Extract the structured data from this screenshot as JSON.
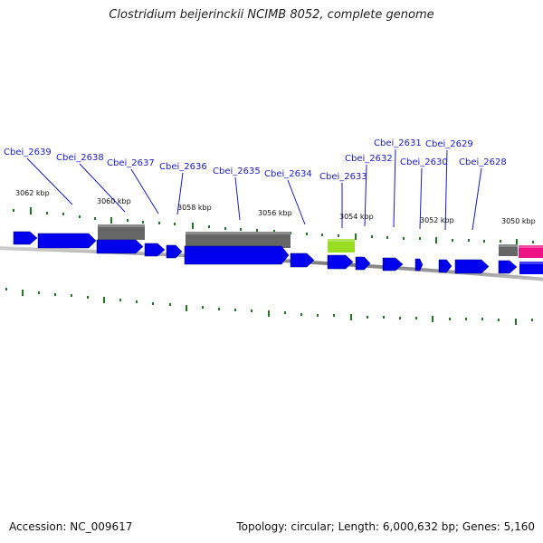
{
  "title": "Clostridium beijerinckii NCIMB 8052, complete genome",
  "footer": {
    "accession": "Accession: NC_009617",
    "info": "Topology: circular; Length: 6,000,632 bp; Genes: 5,160"
  },
  "colors": {
    "forward_gene": "#0000ee",
    "gray_feature": "#666666",
    "green_feature": "#99dd22",
    "pink_feature": "#ee1188",
    "locus_label": "#1a1acc",
    "tick": "#227722",
    "backbone": "#888888"
  },
  "loci": [
    {
      "label": "Cbei_2639"
    },
    {
      "label": "Cbei_2638"
    },
    {
      "label": "Cbei_2637"
    },
    {
      "label": "Cbei_2636"
    },
    {
      "label": "Cbei_2635"
    },
    {
      "label": "Cbei_2634"
    },
    {
      "label": "Cbei_2633"
    },
    {
      "label": "Cbei_2632"
    },
    {
      "label": "Cbei_2631"
    },
    {
      "label": "Cbei_2630"
    },
    {
      "label": "Cbei_2629"
    },
    {
      "label": "Cbei_2628"
    }
  ],
  "scale_labels": [
    "3062 kbp",
    "3060 kbp",
    "3058 kbp",
    "3056 kbp",
    "3054 kbp",
    "3052 kbp",
    "3050 kbp"
  ]
}
